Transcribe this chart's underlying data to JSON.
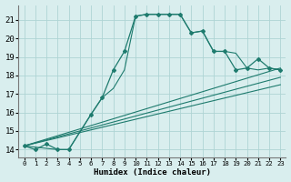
{
  "xlabel": "Humidex (Indice chaleur)",
  "bg_color": "#d9eeee",
  "grid_color": "#aed4d4",
  "line_color": "#1e7b6e",
  "xlim": [
    -0.5,
    23.5
  ],
  "ylim": [
    13.6,
    21.8
  ],
  "xticks": [
    0,
    1,
    2,
    3,
    4,
    5,
    6,
    7,
    8,
    9,
    10,
    11,
    12,
    13,
    14,
    15,
    16,
    17,
    18,
    19,
    20,
    21,
    22,
    23
  ],
  "yticks": [
    14,
    15,
    16,
    17,
    18,
    19,
    20,
    21
  ],
  "series0_x": [
    0,
    1,
    2,
    3,
    4,
    6,
    7,
    8,
    9,
    10,
    11,
    12,
    13,
    14,
    15,
    16,
    17,
    18,
    19,
    20,
    21,
    22,
    23
  ],
  "series0_y": [
    14.2,
    14.0,
    14.3,
    14.0,
    14.0,
    15.9,
    16.8,
    18.3,
    19.3,
    21.2,
    21.3,
    21.3,
    21.3,
    21.3,
    20.3,
    20.4,
    19.3,
    19.3,
    18.3,
    18.4,
    18.9,
    18.4,
    18.3
  ],
  "series1_x": [
    0,
    3,
    4,
    6,
    7,
    8,
    9,
    10,
    11,
    12,
    13,
    14,
    15,
    16,
    17,
    18,
    19,
    20,
    21,
    22,
    23
  ],
  "series1_y": [
    14.2,
    14.0,
    14.0,
    15.9,
    16.8,
    17.3,
    18.3,
    21.2,
    21.3,
    21.3,
    21.3,
    21.3,
    20.3,
    20.4,
    19.3,
    19.3,
    19.2,
    18.4,
    18.3,
    18.4,
    18.3
  ],
  "series2_x": [
    0,
    23
  ],
  "series2_y": [
    14.2,
    18.4
  ],
  "series3_x": [
    0,
    23
  ],
  "series3_y": [
    14.2,
    17.9
  ],
  "series4_x": [
    0,
    23
  ],
  "series4_y": [
    14.2,
    17.5
  ]
}
